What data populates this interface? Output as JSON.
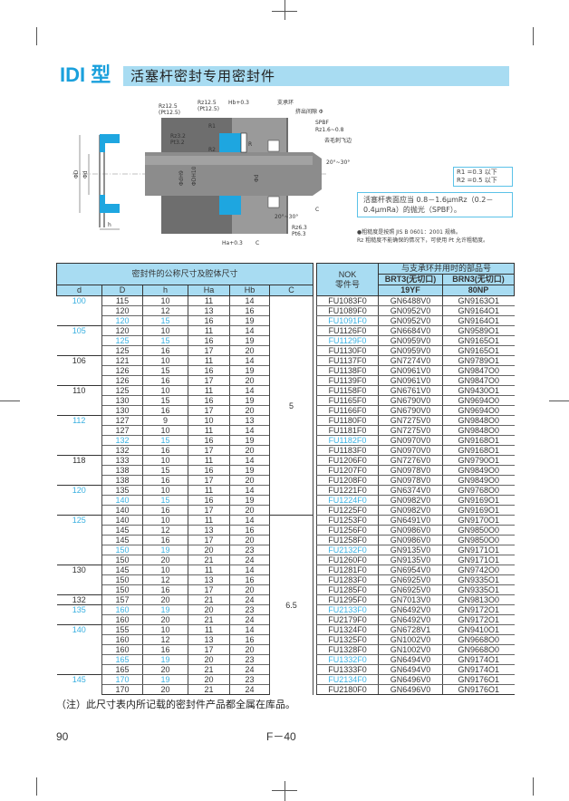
{
  "title": {
    "series": "IDI 型",
    "subtitle": "活塞杆密封专用密封件"
  },
  "drawing": {
    "labels": {
      "support_ring": "支承环",
      "gap": "挤出间隙 Φ",
      "spbf": "SPBF",
      "spbf_rz": "Rz1.6~0.8",
      "deburr": "去毛刺飞边",
      "angle1": "20°~30°",
      "angle2": "20°~30°",
      "rz125a": "Rz12.5",
      "pt125a": "(Pt12.5)",
      "rz125b": "Rz12.5",
      "pt125b": "(Pt12.5)",
      "rz32": "Rz3.2",
      "pt32": "Pt3.2",
      "rz63": "Rz6.3",
      "pt63": "Pt6.3",
      "hb": "Hb+0.3",
      "ha": "Ha+0.3",
      "c": "C",
      "c2": "C",
      "r1": "R1",
      "r2": "R2",
      "r": "R",
      "dh9": "ΦdH9",
      "dh10": "ΦDH10",
      "d": "Φd",
      "bigD": "ΦD",
      "smalld": "Φd",
      "h": "h"
    }
  },
  "radius_note": {
    "line1": "R1 =0.3 以下",
    "line2": "R2 =0.5 以下"
  },
  "surface_note": "活塞杆表面应当 0.8－1.6μmRz（0.2－0.4μmRa）的抛光（SPBF）。",
  "roughness_notes": [
    "●粗糙度是按照 JIS B 0601：2001 规格。",
    "Rz 粗糙度不能确保的情况下，可使用 Pt 允许粗糙度。"
  ],
  "table": {
    "header_group": "密封件的公称尺寸及腔体尺寸",
    "nok_header": "NOK",
    "nok_sub": "零件号",
    "support_header": "与支承环并用时的部品号",
    "brt3": "BRT3(无切口)",
    "brn3": "BRN3(无切口)",
    "brt3_mat": "19YF",
    "brn3_mat": "80NP",
    "cols": [
      "d",
      "D",
      "h",
      "Ha",
      "Hb",
      "C"
    ],
    "c_values": [
      {
        "value": "5",
        "rows": 22
      },
      {
        "value": "6.5",
        "rows": 18
      }
    ],
    "groups": [
      {
        "d": "100",
        "hl": true,
        "rows": [
          [
            "115",
            "10",
            "11",
            "14",
            "FU1083F0",
            "GN6488V0",
            "GN9163O1",
            false
          ],
          [
            "120",
            "12",
            "13",
            "16",
            "FU1089F0",
            "GN0952V0",
            "GN9164O1",
            false
          ],
          [
            "120",
            "15",
            "16",
            "19",
            "FU1091F0",
            "GN0952V0",
            "GN9164O1",
            true
          ]
        ]
      },
      {
        "d": "105",
        "hl": true,
        "rows": [
          [
            "120",
            "10",
            "11",
            "14",
            "FU1126F0",
            "GN6684V0",
            "GN9589O1",
            false
          ],
          [
            "125",
            "15",
            "16",
            "19",
            "FU1129F0",
            "GN0959V0",
            "GN9165O1",
            true
          ],
          [
            "125",
            "16",
            "17",
            "20",
            "FU1130F0",
            "GN0959V0",
            "GN9165O1",
            false
          ]
        ]
      },
      {
        "d": "106",
        "hl": false,
        "rows": [
          [
            "121",
            "10",
            "11",
            "14",
            "FU1137F0",
            "GN7274V0",
            "GN9789O1",
            false
          ],
          [
            "126",
            "15",
            "16",
            "19",
            "FU1138F0",
            "GN0961V0",
            "GN9847O0",
            false
          ],
          [
            "126",
            "16",
            "17",
            "20",
            "FU1139F0",
            "GN0961V0",
            "GN9847O0",
            false
          ]
        ]
      },
      {
        "d": "110",
        "hl": false,
        "rows": [
          [
            "125",
            "10",
            "11",
            "14",
            "FU1158F0",
            "GN6761V0",
            "GN9430O1",
            false
          ],
          [
            "130",
            "15",
            "16",
            "19",
            "FU1165F0",
            "GN6790V0",
            "GN9694O0",
            false
          ],
          [
            "130",
            "16",
            "17",
            "20",
            "FU1166F0",
            "GN6790V0",
            "GN9694O0",
            false
          ]
        ]
      },
      {
        "d": "112",
        "hl": true,
        "rows": [
          [
            "127",
            "9",
            "10",
            "13",
            "FU1180F0",
            "GN7275V0",
            "GN9848O0",
            false
          ],
          [
            "127",
            "10",
            "11",
            "14",
            "FU1181F0",
            "GN7275V0",
            "GN9848O0",
            false
          ],
          [
            "132",
            "15",
            "16",
            "19",
            "FU1182F0",
            "GN0970V0",
            "GN9168O1",
            true
          ],
          [
            "132",
            "16",
            "17",
            "20",
            "FU1183F0",
            "GN0970V0",
            "GN9168O1",
            false
          ]
        ]
      },
      {
        "d": "118",
        "hl": false,
        "rows": [
          [
            "133",
            "10",
            "11",
            "14",
            "FU1206F0",
            "GN7276V0",
            "GN9790O1",
            false
          ],
          [
            "138",
            "15",
            "16",
            "19",
            "FU1207F0",
            "GN0978V0",
            "GN9849O0",
            false
          ],
          [
            "138",
            "16",
            "17",
            "20",
            "FU1208F0",
            "GN0978V0",
            "GN9849O0",
            false
          ]
        ]
      },
      {
        "d": "120",
        "hl": true,
        "rows": [
          [
            "135",
            "10",
            "11",
            "14",
            "FU1221F0",
            "GN6374V0",
            "GN9768O0",
            false
          ],
          [
            "140",
            "15",
            "16",
            "19",
            "FU1224F0",
            "GN0982V0",
            "GN9169O1",
            true
          ],
          [
            "140",
            "16",
            "17",
            "20",
            "FU1225F0",
            "GN0982V0",
            "GN9169O1",
            false
          ]
        ]
      },
      {
        "d": "125",
        "hl": true,
        "rows": [
          [
            "140",
            "10",
            "11",
            "14",
            "FU1253F0",
            "GN6491V0",
            "GN9170O1",
            false
          ],
          [
            "145",
            "12",
            "13",
            "16",
            "FU1256F0",
            "GN0986V0",
            "GN9850O0",
            false
          ],
          [
            "145",
            "16",
            "17",
            "20",
            "FU1258F0",
            "GN0986V0",
            "GN9850O0",
            false
          ],
          [
            "150",
            "19",
            "20",
            "23",
            "FU2132F0",
            "GN9135V0",
            "GN9171O1",
            true
          ],
          [
            "150",
            "20",
            "21",
            "24",
            "FU1260F0",
            "GN9135V0",
            "GN9171O1",
            false
          ]
        ]
      },
      {
        "d": "130",
        "hl": false,
        "rows": [
          [
            "145",
            "10",
            "11",
            "14",
            "FU1281F0",
            "GN6954V0",
            "GN9742O0",
            false
          ],
          [
            "150",
            "12",
            "13",
            "16",
            "FU1283F0",
            "GN6925V0",
            "GN9335O1",
            false
          ],
          [
            "150",
            "16",
            "17",
            "20",
            "FU1285F0",
            "GN6925V0",
            "GN9335O1",
            false
          ]
        ]
      },
      {
        "d": "132",
        "hl": false,
        "rows": [
          [
            "157",
            "20",
            "21",
            "24",
            "FU1295F0",
            "GN7013V0",
            "GN9813O0",
            false
          ]
        ]
      },
      {
        "d": "135",
        "hl": true,
        "rows": [
          [
            "160",
            "19",
            "20",
            "23",
            "FU2133F0",
            "GN6492V0",
            "GN9172O1",
            true
          ],
          [
            "160",
            "20",
            "21",
            "24",
            "FU2179F0",
            "GN6492V0",
            "GN9172O1",
            false
          ]
        ]
      },
      {
        "d": "140",
        "hl": true,
        "rows": [
          [
            "155",
            "10",
            "11",
            "14",
            "FU1324F0",
            "GN6728V1",
            "GN9410O1",
            false
          ],
          [
            "160",
            "12",
            "13",
            "16",
            "FU1325F0",
            "GN1002V0",
            "GN9668O0",
            false
          ],
          [
            "160",
            "16",
            "17",
            "20",
            "FU1328F0",
            "GN1002V0",
            "GN9668O0",
            false
          ],
          [
            "165",
            "19",
            "20",
            "23",
            "FU1332F0",
            "GN6494V0",
            "GN9174O1",
            true
          ],
          [
            "165",
            "20",
            "21",
            "24",
            "FU1333F0",
            "GN6494V0",
            "GN9174O1",
            false
          ]
        ]
      },
      {
        "d": "145",
        "hl": true,
        "rows": [
          [
            "170",
            "19",
            "20",
            "23",
            "FU2134F0",
            "GN6496V0",
            "GN9176O1",
            true
          ],
          [
            "170",
            "20",
            "21",
            "24",
            "FU2180F0",
            "GN6496V0",
            "GN9176O1",
            false
          ]
        ]
      }
    ]
  },
  "footnote": "（注）此尺寸表内所记载的密封件产品都全属在库品。",
  "page_number": "90",
  "page_code": "F－40",
  "colors": {
    "accent": "#1aa0dc",
    "header_bg": "#a8dcf2",
    "seal": "#1ea6e0"
  }
}
